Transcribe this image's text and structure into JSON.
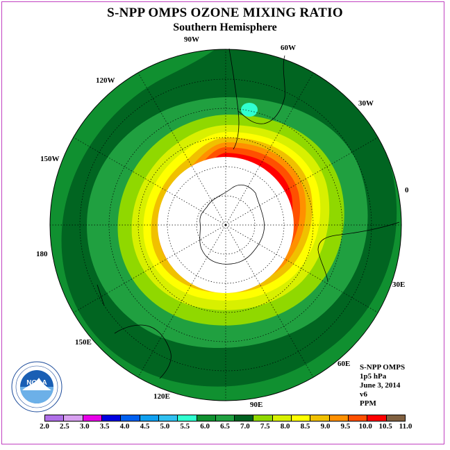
{
  "title": "S-NPP OMPS OZONE MIXING RATIO",
  "subtitle": "Southern Hemisphere",
  "longitude_labels": [
    {
      "id": "90w",
      "text": "90W"
    },
    {
      "id": "60w",
      "text": "60W"
    },
    {
      "id": "30w",
      "text": "30W"
    },
    {
      "id": "0",
      "text": "0"
    },
    {
      "id": "30e",
      "text": "30E"
    },
    {
      "id": "60e",
      "text": "60E"
    },
    {
      "id": "90e",
      "text": "90E"
    },
    {
      "id": "120e",
      "text": "120E"
    },
    {
      "id": "150e",
      "text": "150E"
    },
    {
      "id": "180",
      "text": "180"
    },
    {
      "id": "150w",
      "text": "150W"
    },
    {
      "id": "120w",
      "text": "120W"
    }
  ],
  "info": {
    "instrument": "S-NPP OMPS",
    "level": "1p5 hPa",
    "date": "June 3, 2014",
    "version": "v6",
    "units": "PPM"
  },
  "logo_text": "NOAA",
  "colorbar": {
    "ticks": [
      "2.0",
      "2.5",
      "3.0",
      "3.5",
      "4.0",
      "4.5",
      "5.0",
      "5.5",
      "6.0",
      "6.5",
      "7.0",
      "7.5",
      "8.0",
      "8.5",
      "9.0",
      "9.5",
      "10.0",
      "10.5",
      "11.0"
    ],
    "colors": [
      "#b070e8",
      "#d8a0f0",
      "#e800e8",
      "#0000e0",
      "#0060f0",
      "#10a0f0",
      "#30c0f0",
      "#30ffd0",
      "#109030",
      "#20a040",
      "#006020",
      "#90d800",
      "#d8f000",
      "#ffff00",
      "#f0c000",
      "#ff9000",
      "#ff5000",
      "#ff0000",
      "#806040"
    ]
  }
}
